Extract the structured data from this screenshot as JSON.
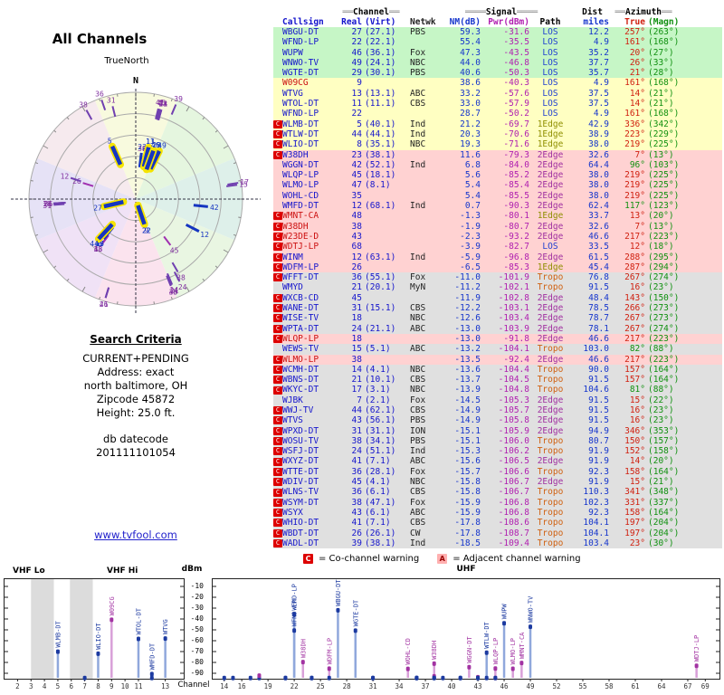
{
  "radar": {
    "title": "All Channels",
    "north": "N",
    "true_north": "TrueNorth"
  },
  "search": {
    "heading": "Search Criteria",
    "mode": "CURRENT+PENDING",
    "address_label": "Address: exact",
    "city": "north baltimore, OH",
    "zip": "Zipcode 45872",
    "height": "Height: 25.0 ft.",
    "db_label": "db datecode",
    "db_value": "201111101054",
    "link": "www.tvfool.com"
  },
  "table": {
    "h1": {
      "dec2": "══",
      "dec4": "════",
      "channel": "Channel",
      "signal": "Signal",
      "dist": "Dist",
      "azimuth": "Azimuth"
    },
    "h2": {
      "callsign": "Callsign",
      "real": "Real",
      "virt": "(Virt)",
      "net": "Netwk",
      "nm": "NM(dB)",
      "pwr": "Pwr(dBm)",
      "path": "Path",
      "miles": "miles",
      "true": "True",
      "magn": "(Magn)"
    }
  },
  "legend": {
    "c_letter": "C",
    "c_text": "= Co-channel warning",
    "a_letter": "A",
    "a_text": "= Adjacent channel warning"
  },
  "bottom_chart": {
    "y_label": "dBm",
    "x_label": "Channel",
    "vhf_lo": "VHF Lo",
    "vhf_hi": "VHF Hi",
    "uhf": "UHF",
    "y_ticks": [
      -10,
      -20,
      -30,
      -40,
      -50,
      -60,
      -70,
      -80,
      -90
    ],
    "vhf_ticks": [
      2,
      3,
      4,
      5,
      6,
      7,
      8,
      9,
      10,
      11,
      13
    ],
    "uhf_ticks": [
      14,
      16,
      19,
      22,
      25,
      28,
      31,
      34,
      37,
      40,
      43,
      46,
      49,
      52,
      55,
      58,
      61,
      64,
      67,
      69
    ]
  },
  "chart_data": {
    "type": "table",
    "title": "All Channels",
    "power_axis_dbm": [
      -10,
      -90
    ],
    "stations": [
      {
        "callsign": "WBGU-DT",
        "real": 27,
        "virt": "(27.1)",
        "net": "PBS",
        "nm": 59.3,
        "pwr": -31.6,
        "path": "LOS",
        "miles": 12.2,
        "az_true": "257°",
        "az_magn": "(263°)",
        "band": "green",
        "warn": ""
      },
      {
        "callsign": "WFND-LP",
        "real": 22,
        "virt": "(22.1)",
        "net": "",
        "nm": 55.4,
        "pwr": -35.5,
        "path": "LOS",
        "miles": 4.9,
        "az_true": "161°",
        "az_magn": "(168°)",
        "band": "green",
        "warn": ""
      },
      {
        "callsign": "WUPW",
        "real": 46,
        "virt": "(36.1)",
        "net": "Fox",
        "nm": 47.3,
        "pwr": -43.5,
        "path": "LOS",
        "miles": 35.2,
        "az_true": "20°",
        "az_magn": "(27°)",
        "band": "green",
        "warn": ""
      },
      {
        "callsign": "WNWO-TV",
        "real": 49,
        "virt": "(24.1)",
        "net": "NBC",
        "nm": 44.0,
        "pwr": -46.8,
        "path": "LOS",
        "miles": 37.7,
        "az_true": "26°",
        "az_magn": "(33°)",
        "band": "green",
        "warn": ""
      },
      {
        "callsign": "WGTE-DT",
        "real": 29,
        "virt": "(30.1)",
        "net": "PBS",
        "nm": 40.6,
        "pwr": -50.3,
        "path": "LOS",
        "miles": 35.7,
        "az_true": "21°",
        "az_magn": "(28°)",
        "band": "green",
        "warn": ""
      },
      {
        "callsign": "W09CG",
        "real": 9,
        "virt": "",
        "net": "",
        "nm": 38.6,
        "pwr": -40.3,
        "path": "LOS",
        "miles": 4.9,
        "az_true": "161°",
        "az_magn": "(168°)",
        "band": "yellow",
        "warn": "",
        "analog": true,
        "lp": true
      },
      {
        "callsign": "WTVG",
        "real": 13,
        "virt": "(13.1)",
        "net": "ABC",
        "nm": 33.2,
        "pwr": -57.6,
        "path": "LOS",
        "miles": 37.5,
        "az_true": "14°",
        "az_magn": "(21°)",
        "band": "yellow",
        "warn": ""
      },
      {
        "callsign": "WTOL-DT",
        "real": 11,
        "virt": "(11.1)",
        "net": "CBS",
        "nm": 33.0,
        "pwr": -57.9,
        "path": "LOS",
        "miles": 37.5,
        "az_true": "14°",
        "az_magn": "(21°)",
        "band": "yellow",
        "warn": ""
      },
      {
        "callsign": "WFND-LP",
        "real": 22,
        "virt": "",
        "net": "",
        "nm": 28.7,
        "pwr": -50.2,
        "path": "LOS",
        "miles": 4.9,
        "az_true": "161°",
        "az_magn": "(168°)",
        "band": "yellow",
        "warn": ""
      },
      {
        "callsign": "WLMB-DT",
        "real": 5,
        "virt": "(40.1)",
        "net": "Ind",
        "nm": 21.2,
        "pwr": -69.7,
        "path": "1Edge",
        "miles": 42.9,
        "az_true": "336°",
        "az_magn": "(342°)",
        "band": "yellow",
        "warn": "C"
      },
      {
        "callsign": "WTLW-DT",
        "real": 44,
        "virt": "(44.1)",
        "net": "Ind",
        "nm": 20.3,
        "pwr": -70.6,
        "path": "1Edge",
        "miles": 38.9,
        "az_true": "223°",
        "az_magn": "(229°)",
        "band": "yellow",
        "warn": "C"
      },
      {
        "callsign": "WLIO-DT",
        "real": 8,
        "virt": "(35.1)",
        "net": "NBC",
        "nm": 19.3,
        "pwr": -71.6,
        "path": "1Edge",
        "miles": 38.0,
        "az_true": "219°",
        "az_magn": "(225°)",
        "band": "yellow",
        "warn": "C"
      },
      {
        "callsign": "W38DH",
        "real": 23,
        "virt": "(38.1)",
        "net": "",
        "nm": 11.6,
        "pwr": -79.3,
        "path": "2Edge",
        "miles": 32.6,
        "az_true": "7°",
        "az_magn": "(13°)",
        "band": "pink",
        "warn": "C",
        "lp": true
      },
      {
        "callsign": "WGGN-DT",
        "real": 42,
        "virt": "(52.1)",
        "net": "Ind",
        "nm": 6.8,
        "pwr": -84.0,
        "path": "2Edge",
        "miles": 64.4,
        "az_true": "96°",
        "az_magn": "(103°)",
        "band": "pink",
        "warn": "",
        "lp": true,
        "green_az": true
      },
      {
        "callsign": "WLQP-LP",
        "real": 45,
        "virt": "(18.1)",
        "net": "",
        "nm": 5.6,
        "pwr": -85.2,
        "path": "2Edge",
        "miles": 38.0,
        "az_true": "219°",
        "az_magn": "(225°)",
        "band": "pink",
        "warn": "",
        "lp": true
      },
      {
        "callsign": "WLMO-LP",
        "real": 47,
        "virt": "(8.1)",
        "net": "",
        "nm": 5.4,
        "pwr": -85.4,
        "path": "2Edge",
        "miles": 38.0,
        "az_true": "219°",
        "az_magn": "(225°)",
        "band": "pink",
        "warn": "",
        "lp": true
      },
      {
        "callsign": "WOHL-CD",
        "real": 35,
        "virt": "",
        "net": "",
        "nm": 5.4,
        "pwr": -85.5,
        "path": "2Edge",
        "miles": 38.0,
        "az_true": "219°",
        "az_magn": "(225°)",
        "band": "pink",
        "warn": "",
        "lp": true
      },
      {
        "callsign": "WMFD-DT",
        "real": 12,
        "virt": "(68.1)",
        "net": "Ind",
        "nm": 0.7,
        "pwr": -90.3,
        "path": "2Edge",
        "miles": 62.4,
        "az_true": "117°",
        "az_magn": "(123°)",
        "band": "pink",
        "warn": "",
        "green_az": true
      },
      {
        "callsign": "WMNT-CA",
        "real": 48,
        "virt": "",
        "net": "",
        "nm": -1.3,
        "pwr": -80.1,
        "path": "1Edge",
        "miles": 33.7,
        "az_true": "13°",
        "az_magn": "(20°)",
        "band": "pink",
        "warn": "C",
        "analog": true,
        "lp": true
      },
      {
        "callsign": "W38DH",
        "real": 38,
        "virt": "",
        "net": "",
        "nm": -1.9,
        "pwr": -80.7,
        "path": "2Edge",
        "miles": 32.6,
        "az_true": "7°",
        "az_magn": "(13°)",
        "band": "pink",
        "warn": "C",
        "analog": true,
        "lp": true
      },
      {
        "callsign": "W23DE-D",
        "real": 43,
        "virt": "",
        "net": "",
        "nm": -2.3,
        "pwr": -93.2,
        "path": "2Edge",
        "miles": 46.6,
        "az_true": "217°",
        "az_magn": "(223°)",
        "band": "pink",
        "warn": "C",
        "analog": true,
        "lp": true
      },
      {
        "callsign": "WDTJ-LP",
        "real": 68,
        "virt": "",
        "net": "",
        "nm": -3.9,
        "pwr": -82.7,
        "path": "LOS",
        "miles": 33.5,
        "az_true": "12°",
        "az_magn": "(18°)",
        "band": "pink",
        "warn": "C",
        "analog": true,
        "lp": true
      },
      {
        "callsign": "WINM",
        "real": 12,
        "virt": "(63.1)",
        "net": "Ind",
        "nm": -5.9,
        "pwr": -96.8,
        "path": "2Edge",
        "miles": 61.5,
        "az_true": "288°",
        "az_magn": "(295°)",
        "band": "pink",
        "warn": "C"
      },
      {
        "callsign": "WDFM-LP",
        "real": 26,
        "virt": "",
        "net": "",
        "nm": -6.5,
        "pwr": -85.3,
        "path": "1Edge",
        "miles": 45.4,
        "az_true": "287°",
        "az_magn": "(294°)",
        "band": "pink",
        "warn": "C",
        "lp": true
      },
      {
        "callsign": "WFFT-DT",
        "real": 36,
        "virt": "(55.1)",
        "net": "Fox",
        "nm": -11.0,
        "pwr": -101.9,
        "path": "Tropo",
        "miles": 76.8,
        "az_true": "267°",
        "az_magn": "(274°)",
        "band": "gray",
        "warn": "C"
      },
      {
        "callsign": "WMYD",
        "real": 21,
        "virt": "(20.1)",
        "net": "MyN",
        "nm": -11.2,
        "pwr": -102.1,
        "path": "Tropo",
        "miles": 91.5,
        "az_true": "16°",
        "az_magn": "(23°)",
        "band": "gray",
        "warn": ""
      },
      {
        "callsign": "WXCB-CD",
        "real": 45,
        "virt": "",
        "net": "",
        "nm": -11.9,
        "pwr": -102.8,
        "path": "2Edge",
        "miles": 48.4,
        "az_true": "143°",
        "az_magn": "(150°)",
        "band": "gray",
        "warn": "C",
        "lp": true
      },
      {
        "callsign": "WANE-DT",
        "real": 31,
        "virt": "(15.1)",
        "net": "CBS",
        "nm": -12.2,
        "pwr": -103.1,
        "path": "2Edge",
        "miles": 78.5,
        "az_true": "266°",
        "az_magn": "(273°)",
        "band": "gray",
        "warn": "C"
      },
      {
        "callsign": "WISE-TV",
        "real": 18,
        "virt": "",
        "net": "NBC",
        "nm": -12.6,
        "pwr": -103.4,
        "path": "2Edge",
        "miles": 78.7,
        "az_true": "267°",
        "az_magn": "(273°)",
        "band": "gray",
        "warn": "C"
      },
      {
        "callsign": "WPTA-DT",
        "real": 24,
        "virt": "(21.1)",
        "net": "ABC",
        "nm": -13.0,
        "pwr": -103.9,
        "path": "2Edge",
        "miles": 78.1,
        "az_true": "267°",
        "az_magn": "(274°)",
        "band": "gray",
        "warn": "C"
      },
      {
        "callsign": "WLQP-LP",
        "real": 18,
        "virt": "",
        "net": "",
        "nm": -13.0,
        "pwr": -91.8,
        "path": "2Edge",
        "miles": 46.6,
        "az_true": "217°",
        "az_magn": "(223°)",
        "band": "pink",
        "warn": "C",
        "analog": true,
        "lp": true
      },
      {
        "callsign": "WEWS-TV",
        "real": 15,
        "virt": "(5.1)",
        "net": "ABC",
        "nm": -13.2,
        "pwr": -104.1,
        "path": "Tropo",
        "miles": 103.0,
        "az_true": "82°",
        "az_magn": "(88°)",
        "band": "gray",
        "warn": "",
        "green_az": true
      },
      {
        "callsign": "WLMO-LP",
        "real": 38,
        "virt": "",
        "net": "",
        "nm": -13.5,
        "pwr": -92.4,
        "path": "2Edge",
        "miles": 46.6,
        "az_true": "217°",
        "az_magn": "(223°)",
        "band": "pink",
        "warn": "C",
        "analog": true,
        "lp": true
      },
      {
        "callsign": "WCMH-DT",
        "real": 14,
        "virt": "(4.1)",
        "net": "NBC",
        "nm": -13.6,
        "pwr": -104.4,
        "path": "Tropo",
        "miles": 90.0,
        "az_true": "157°",
        "az_magn": "(164°)",
        "band": "gray",
        "warn": "C"
      },
      {
        "callsign": "WBNS-DT",
        "real": 21,
        "virt": "(10.1)",
        "net": "CBS",
        "nm": -13.7,
        "pwr": -104.5,
        "path": "Tropo",
        "miles": 91.5,
        "az_true": "157°",
        "az_magn": "(164°)",
        "band": "gray",
        "warn": "C"
      },
      {
        "callsign": "WKYC-DT",
        "real": 17,
        "virt": "(3.1)",
        "net": "NBC",
        "nm": -13.9,
        "pwr": -104.8,
        "path": "Tropo",
        "miles": 104.6,
        "az_true": "81°",
        "az_magn": "(88°)",
        "band": "gray",
        "warn": "C",
        "green_az": true
      },
      {
        "callsign": "WJBK",
        "real": 7,
        "virt": "(2.1)",
        "net": "Fox",
        "nm": -14.5,
        "pwr": -105.3,
        "path": "2Edge",
        "miles": 91.5,
        "az_true": "15°",
        "az_magn": "(22°)",
        "band": "gray",
        "warn": ""
      },
      {
        "callsign": "WWJ-TV",
        "real": 44,
        "virt": "(62.1)",
        "net": "CBS",
        "nm": -14.9,
        "pwr": -105.7,
        "path": "2Edge",
        "miles": 91.5,
        "az_true": "16°",
        "az_magn": "(23°)",
        "band": "gray",
        "warn": "C"
      },
      {
        "callsign": "WTVS",
        "real": 43,
        "virt": "(56.1)",
        "net": "PBS",
        "nm": -14.9,
        "pwr": -105.8,
        "path": "2Edge",
        "miles": 91.5,
        "az_true": "16°",
        "az_magn": "(23°)",
        "band": "gray",
        "warn": "C"
      },
      {
        "callsign": "WPXD-DT",
        "real": 31,
        "virt": "(31.1)",
        "net": "ION",
        "nm": -15.1,
        "pwr": -105.9,
        "path": "2Edge",
        "miles": 94.9,
        "az_true": "346°",
        "az_magn": "(353°)",
        "band": "gray",
        "warn": "C"
      },
      {
        "callsign": "WOSU-TV",
        "real": 38,
        "virt": "(34.1)",
        "net": "PBS",
        "nm": -15.1,
        "pwr": -106.0,
        "path": "Tropo",
        "miles": 80.7,
        "az_true": "150°",
        "az_magn": "(157°)",
        "band": "gray",
        "warn": "C"
      },
      {
        "callsign": "WSFJ-DT",
        "real": 24,
        "virt": "(51.1)",
        "net": "Ind",
        "nm": -15.3,
        "pwr": -106.2,
        "path": "Tropo",
        "miles": 91.9,
        "az_true": "152°",
        "az_magn": "(158°)",
        "band": "gray",
        "warn": "C"
      },
      {
        "callsign": "WXYZ-DT",
        "real": 41,
        "virt": "(7.1)",
        "net": "ABC",
        "nm": -15.6,
        "pwr": -106.5,
        "path": "2Edge",
        "miles": 91.9,
        "az_true": "14°",
        "az_magn": "(20°)",
        "band": "gray",
        "warn": "C"
      },
      {
        "callsign": "WTTE-DT",
        "real": 36,
        "virt": "(28.1)",
        "net": "Fox",
        "nm": -15.7,
        "pwr": -106.6,
        "path": "Tropo",
        "miles": 92.3,
        "az_true": "158°",
        "az_magn": "(164°)",
        "band": "gray",
        "warn": "C"
      },
      {
        "callsign": "WDIV-DT",
        "real": 45,
        "virt": "(4.1)",
        "net": "NBC",
        "nm": -15.8,
        "pwr": -106.7,
        "path": "2Edge",
        "miles": 91.9,
        "az_true": "15°",
        "az_magn": "(21°)",
        "band": "gray",
        "warn": "C"
      },
      {
        "callsign": "WLNS-TV",
        "real": 36,
        "virt": "(6.1)",
        "net": "CBS",
        "nm": -15.8,
        "pwr": -106.7,
        "path": "Tropo",
        "miles": 110.3,
        "az_true": "341°",
        "az_magn": "(348°)",
        "band": "gray",
        "warn": "C"
      },
      {
        "callsign": "WSYM-DT",
        "real": 38,
        "virt": "(47.1)",
        "net": "Fox",
        "nm": -15.9,
        "pwr": -106.8,
        "path": "Tropo",
        "miles": 102.3,
        "az_true": "331°",
        "az_magn": "(337°)",
        "band": "gray",
        "warn": "C"
      },
      {
        "callsign": "WSYX",
        "real": 43,
        "virt": "(6.1)",
        "net": "ABC",
        "nm": -15.9,
        "pwr": -106.8,
        "path": "Tropo",
        "miles": 92.3,
        "az_true": "158°",
        "az_magn": "(164°)",
        "band": "gray",
        "warn": "C"
      },
      {
        "callsign": "WHIO-DT",
        "real": 41,
        "virt": "(7.1)",
        "net": "CBS",
        "nm": -17.8,
        "pwr": -108.6,
        "path": "Tropo",
        "miles": 104.1,
        "az_true": "197°",
        "az_magn": "(204°)",
        "band": "gray",
        "warn": "C"
      },
      {
        "callsign": "WBDT-DT",
        "real": 26,
        "virt": "(26.1)",
        "net": "CW",
        "nm": -17.8,
        "pwr": -108.7,
        "path": "Tropo",
        "miles": 104.1,
        "az_true": "197°",
        "az_magn": "(204°)",
        "band": "gray",
        "warn": "C"
      },
      {
        "callsign": "WADL-DT",
        "real": 39,
        "virt": "(38.1)",
        "net": "Ind",
        "nm": -18.5,
        "pwr": -109.4,
        "path": "Tropo",
        "miles": 103.4,
        "az_true": "23°",
        "az_magn": "(30°)",
        "band": "gray",
        "warn": "C"
      }
    ]
  }
}
